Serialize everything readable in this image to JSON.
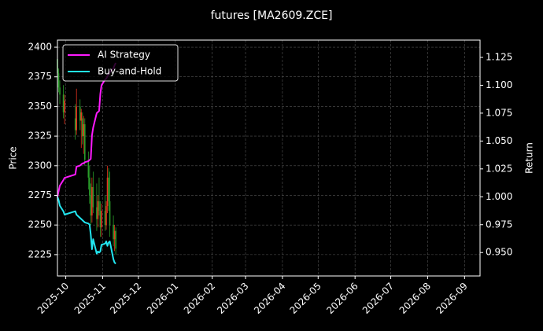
{
  "chart_data": {
    "type": "candlestick",
    "title": "futures [MA2609.ZCE]",
    "y_label": "Price",
    "y2_label": "Return",
    "grid": true,
    "legend": "upper left",
    "up_color": "#e8331f",
    "down_color": "#2a9d2a",
    "xlim": [
      "2025-09-24",
      "2026-09-14"
    ],
    "xticks": [
      "2025-10",
      "2025-11",
      "2025-12",
      "2026-01",
      "2026-02",
      "2026-03",
      "2026-04",
      "2026-05",
      "2026-06",
      "2026-07",
      "2026-08",
      "2026-09"
    ],
    "ylim": [
      2207,
      2406
    ],
    "yticks": [
      2225,
      2250,
      2275,
      2300,
      2325,
      2350,
      2375,
      2400
    ],
    "y2lim": [
      0.929,
      1.1405
    ],
    "y2ticks": [
      {
        "value": 0.95,
        "label": "0.950"
      },
      {
        "value": 0.975,
        "label": "0.975"
      },
      {
        "value": 1.0,
        "label": "1.000"
      },
      {
        "value": 1.025,
        "label": "1.025"
      },
      {
        "value": 1.05,
        "label": "1.050"
      },
      {
        "value": 1.075,
        "label": "1.075"
      },
      {
        "value": 1.1,
        "label": "1.100"
      },
      {
        "value": 1.125,
        "label": "1.125"
      }
    ],
    "x": [
      "2025-09-24",
      "2025-09-25",
      "2025-09-26",
      "2025-09-29",
      "2025-09-30",
      "2025-10-09",
      "2025-10-10",
      "2025-10-13",
      "2025-10-14",
      "2025-10-15",
      "2025-10-16",
      "2025-10-17",
      "2025-10-20",
      "2025-10-21",
      "2025-10-22",
      "2025-10-23",
      "2025-10-24",
      "2025-10-27",
      "2025-10-28",
      "2025-10-29",
      "2025-10-30",
      "2025-10-31",
      "2025-11-03",
      "2025-11-04",
      "2025-11-05",
      "2025-11-06",
      "2025-11-07",
      "2025-11-10",
      "2025-11-11",
      "2025-11-12"
    ],
    "open": [
      2390,
      2378,
      2366,
      2360,
      2345,
      2340,
      2330,
      2350,
      2338,
      2340,
      2325,
      2335,
      2305,
      2290,
      2275,
      2258,
      2282,
      2265,
      2255,
      2270,
      2262,
      2248,
      2262,
      2250,
      2266,
      2290,
      2270,
      2250,
      2238,
      2245
    ],
    "high": [
      2395,
      2382,
      2372,
      2368,
      2360,
      2352,
      2365,
      2356,
      2348,
      2345,
      2342,
      2340,
      2312,
      2300,
      2285,
      2290,
      2295,
      2285,
      2275,
      2290,
      2270,
      2268,
      2275,
      2270,
      2300,
      2298,
      2295,
      2258,
      2250,
      2248
    ],
    "low": [
      2372,
      2362,
      2352,
      2340,
      2335,
      2322,
      2326,
      2330,
      2315,
      2318,
      2310,
      2300,
      2280,
      2268,
      2250,
      2252,
      2260,
      2245,
      2248,
      2258,
      2240,
      2240,
      2245,
      2246,
      2260,
      2262,
      2240,
      2232,
      2228,
      2225
    ],
    "close": [
      2378,
      2366,
      2360,
      2345,
      2355,
      2330,
      2350,
      2338,
      2345,
      2325,
      2335,
      2305,
      2290,
      2275,
      2258,
      2282,
      2265,
      2255,
      2270,
      2262,
      2248,
      2262,
      2250,
      2266,
      2290,
      2270,
      2250,
      2238,
      2245,
      2230
    ],
    "series": [
      {
        "name": "AI Strategy",
        "color": "#ff1aff",
        "axis": "y2",
        "values": [
          1.0,
          1.005,
          1.01,
          1.015,
          1.017,
          1.02,
          1.027,
          1.028,
          1.029,
          1.03,
          1.03,
          1.031,
          1.032,
          1.033,
          1.034,
          1.055,
          1.062,
          1.075,
          1.076,
          1.077,
          1.092,
          1.1,
          1.105,
          1.106,
          1.108,
          1.11,
          1.112,
          1.115,
          1.118,
          1.12
        ]
      },
      {
        "name": "Buy-and-Hold",
        "color": "#22e6f0",
        "axis": "y2",
        "values": [
          1.0,
          0.997,
          0.992,
          0.987,
          0.984,
          0.987,
          0.984,
          0.981,
          0.98,
          0.979,
          0.978,
          0.977,
          0.976,
          0.975,
          0.966,
          0.953,
          0.962,
          0.949,
          0.951,
          0.95,
          0.951,
          0.957,
          0.958,
          0.96,
          0.956,
          0.959,
          0.96,
          0.944,
          0.941,
          0.94
        ]
      }
    ]
  }
}
